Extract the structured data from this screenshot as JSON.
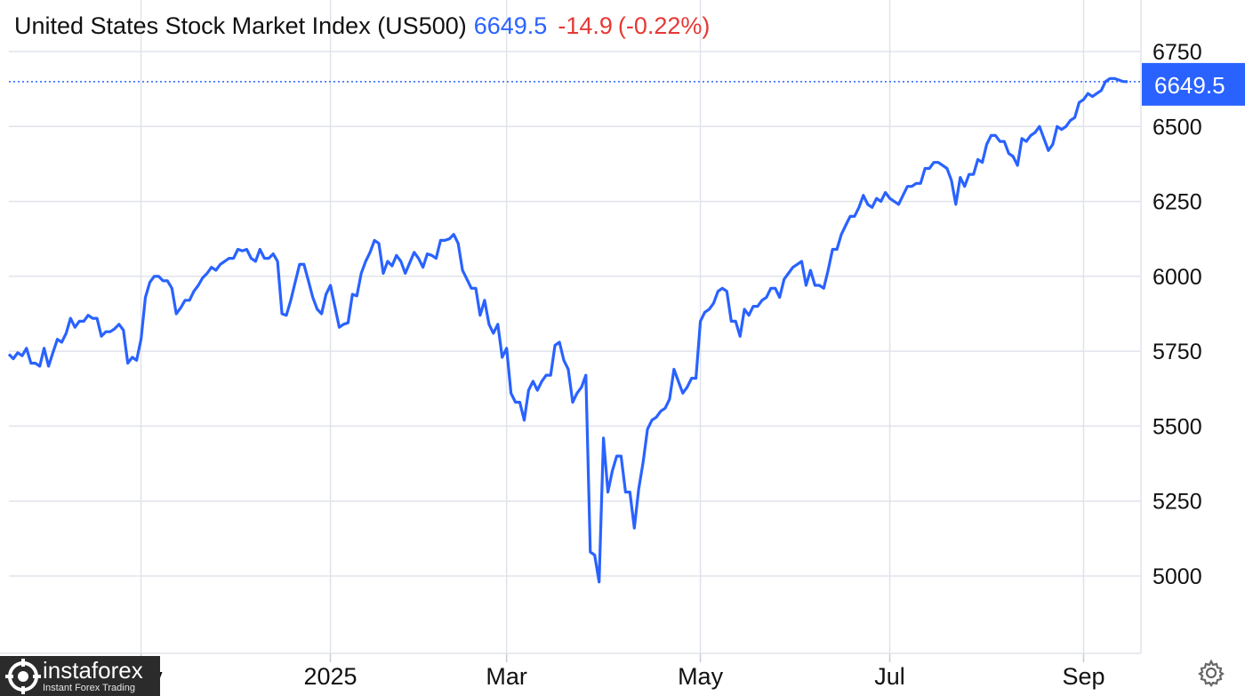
{
  "header": {
    "name": "United States Stock Market Index (US500)",
    "price": "6649.5",
    "change": "-14.9",
    "change_pct": "(-0.22%)"
  },
  "last_price_label": "6649.5",
  "watermark": {
    "brand": "instaforex",
    "tagline": "Instant Forex Trading"
  },
  "settings_icon": "gear-icon",
  "colors": {
    "line": "#2962ff",
    "negative": "#e53935",
    "grid": "#e0e3eb",
    "tag_bg": "#2962ff"
  },
  "chart_data": {
    "type": "line",
    "title": "United States Stock Market Index (US500)",
    "xlabel": "",
    "ylabel": "",
    "ylim": [
      4800,
      6860
    ],
    "yticks": [
      5000,
      5250,
      5500,
      5750,
      6000,
      6250,
      6500,
      6750
    ],
    "ytick_labels": [
      "5000",
      "5250",
      "5500",
      "5750",
      "6000",
      "6250",
      "6500",
      "6750"
    ],
    "xticks": [
      {
        "label": "Nov",
        "index": 30
      },
      {
        "label": "2025",
        "index": 73
      },
      {
        "label": "Mar",
        "index": 113
      },
      {
        "label": "May",
        "index": 157
      },
      {
        "label": "Jul",
        "index": 200
      },
      {
        "label": "Sep",
        "index": 244
      }
    ],
    "grid": true,
    "last_value": 6649.5,
    "series": [
      {
        "values": [
          5740,
          5725,
          5745,
          5735,
          5760,
          5710,
          5710,
          5700,
          5760,
          5700,
          5745,
          5790,
          5780,
          5810,
          5860,
          5830,
          5850,
          5850,
          5870,
          5860,
          5860,
          5800,
          5815,
          5815,
          5825,
          5840,
          5820,
          5710,
          5730,
          5720,
          5790,
          5930,
          5980,
          6000,
          6000,
          5985,
          5985,
          5960,
          5875,
          5895,
          5920,
          5920,
          5950,
          5970,
          5995,
          6010,
          6030,
          6020,
          6040,
          6050,
          6060,
          6060,
          6090,
          6085,
          6090,
          6060,
          6050,
          6090,
          6060,
          6060,
          6075,
          6050,
          5875,
          5870,
          5920,
          5980,
          6040,
          6040,
          5985,
          5930,
          5890,
          5875,
          5940,
          5970,
          5900,
          5830,
          5840,
          5845,
          5940,
          5935,
          6010,
          6050,
          6080,
          6120,
          6110,
          6010,
          6050,
          6035,
          6070,
          6050,
          6010,
          6045,
          6080,
          6060,
          6030,
          6075,
          6070,
          6060,
          6120,
          6120,
          6125,
          6140,
          6110,
          6020,
          5990,
          5960,
          5960,
          5870,
          5920,
          5840,
          5810,
          5840,
          5730,
          5760,
          5610,
          5580,
          5580,
          5520,
          5620,
          5650,
          5620,
          5650,
          5670,
          5670,
          5770,
          5780,
          5720,
          5690,
          5580,
          5610,
          5630,
          5670,
          5080,
          5070,
          4980,
          5460,
          5280,
          5350,
          5400,
          5400,
          5280,
          5280,
          5160,
          5290,
          5380,
          5490,
          5520,
          5530,
          5550,
          5560,
          5590,
          5690,
          5650,
          5610,
          5630,
          5660,
          5660,
          5850,
          5880,
          5890,
          5910,
          5950,
          5960,
          5950,
          5850,
          5850,
          5800,
          5890,
          5870,
          5900,
          5900,
          5920,
          5930,
          5960,
          5960,
          5930,
          5990,
          6010,
          6030,
          6040,
          6050,
          5970,
          6020,
          5970,
          5970,
          5960,
          6020,
          6090,
          6090,
          6140,
          6170,
          6200,
          6200,
          6230,
          6270,
          6240,
          6230,
          6260,
          6250,
          6280,
          6260,
          6250,
          6240,
          6270,
          6300,
          6300,
          6310,
          6310,
          6360,
          6360,
          6380,
          6380,
          6370,
          6360,
          6320,
          6240,
          6330,
          6300,
          6340,
          6340,
          6390,
          6380,
          6440,
          6470,
          6470,
          6450,
          6450,
          6410,
          6400,
          6370,
          6460,
          6450,
          6470,
          6480,
          6500,
          6460,
          6420,
          6440,
          6500,
          6490,
          6500,
          6520,
          6530,
          6580,
          6590,
          6610,
          6600,
          6610,
          6620,
          6650,
          6660,
          6660,
          6655,
          6650,
          6649.5
        ]
      }
    ]
  }
}
